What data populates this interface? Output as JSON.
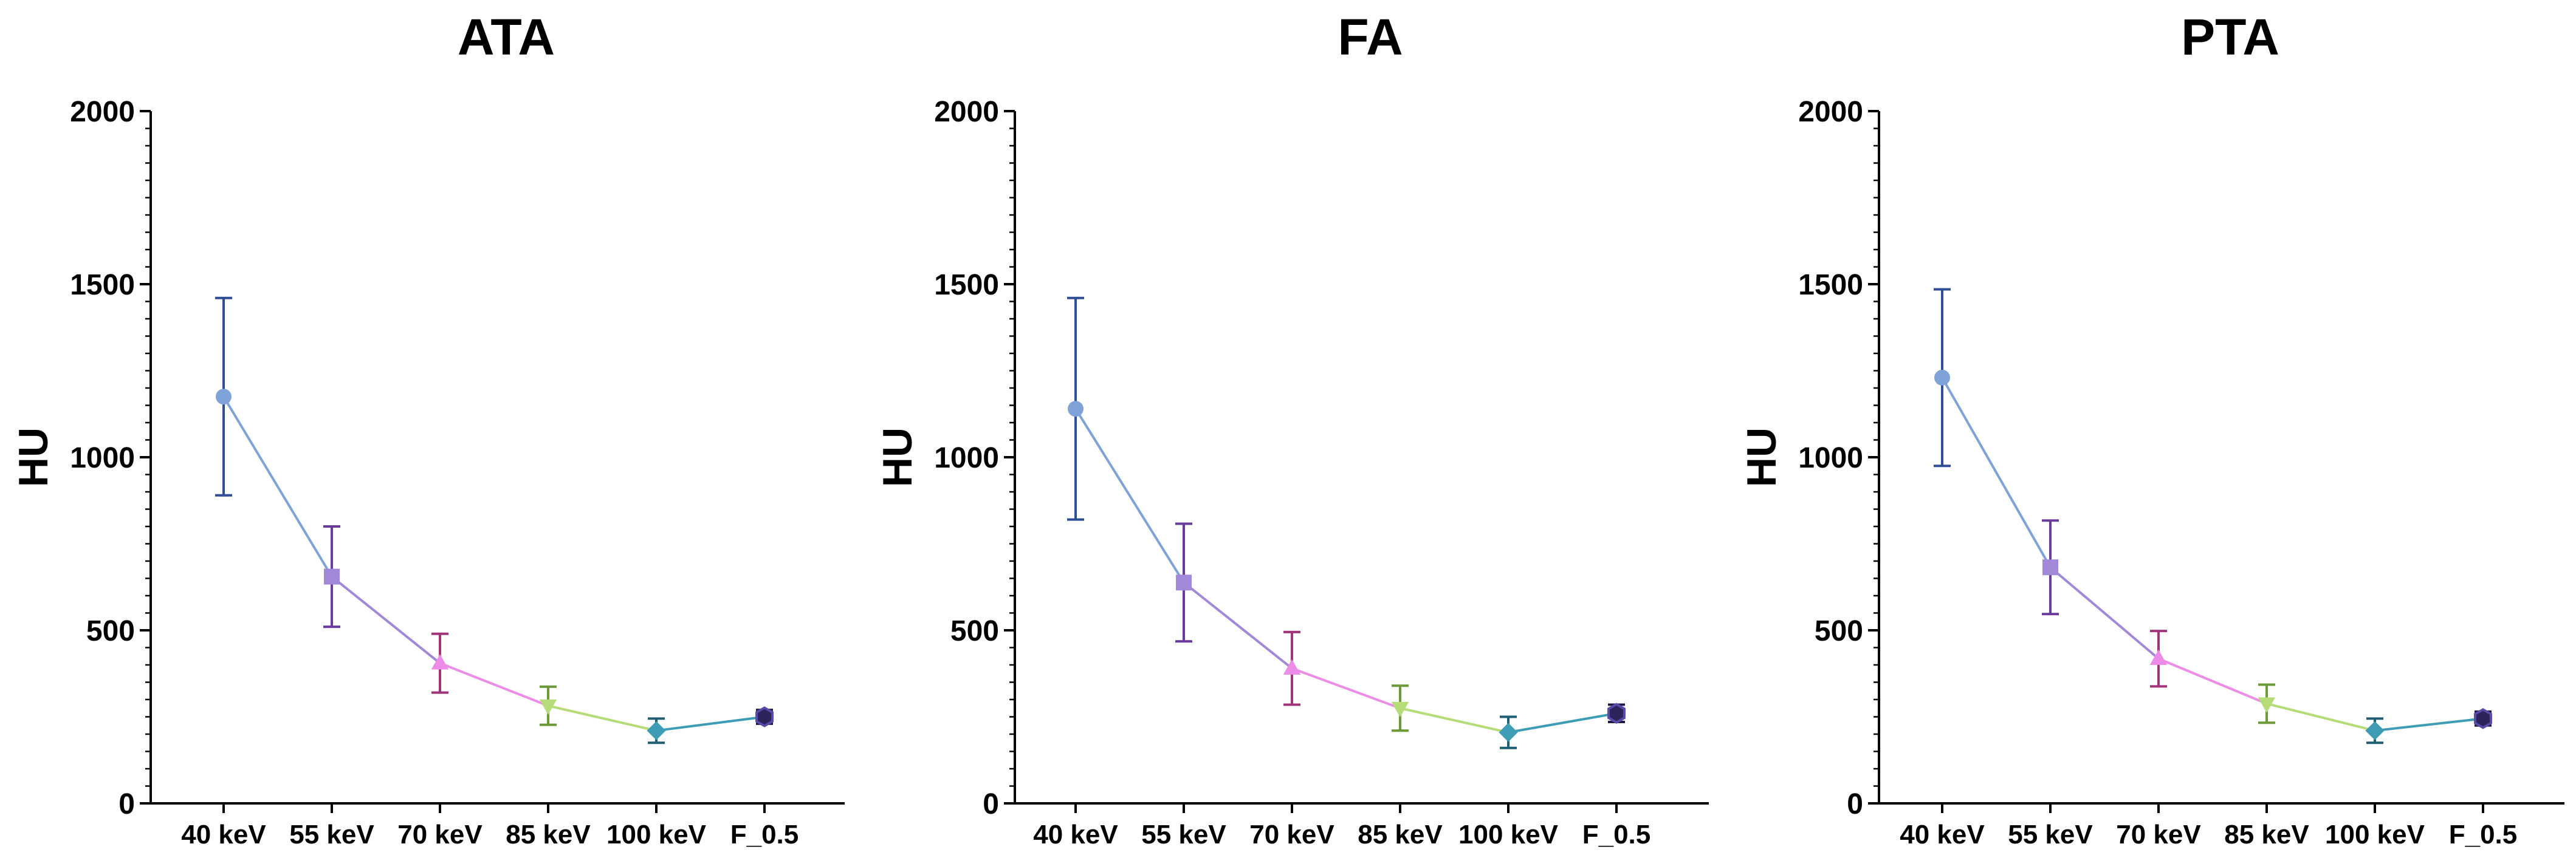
{
  "chart_data": [
    {
      "type": "line",
      "title": "ATA",
      "xlabel": "",
      "ylabel": "HU",
      "ylim": [
        0,
        2000
      ],
      "yticks": [
        0,
        500,
        1000,
        1500,
        2000
      ],
      "categories": [
        "40 keV",
        "55 keV",
        "70 keV",
        "85 keV",
        "100 keV",
        "F_0.5"
      ],
      "values": [
        1175,
        655,
        405,
        282,
        210,
        250
      ],
      "error": [
        285,
        145,
        85,
        55,
        35,
        20
      ]
    },
    {
      "type": "line",
      "title": "FA",
      "xlabel": "",
      "ylabel": "HU",
      "ylim": [
        0,
        2000
      ],
      "yticks": [
        0,
        500,
        1000,
        1500,
        2000
      ],
      "categories": [
        "40 keV",
        "55 keV",
        "70 keV",
        "85 keV",
        "100 keV",
        "F_0.5"
      ],
      "values": [
        1140,
        638,
        390,
        275,
        205,
        260
      ],
      "error": [
        320,
        170,
        105,
        65,
        45,
        25
      ]
    },
    {
      "type": "line",
      "title": "PTA",
      "xlabel": "",
      "ylabel": "HU",
      "ylim": [
        0,
        2000
      ],
      "yticks": [
        0,
        500,
        1000,
        1500,
        2000
      ],
      "categories": [
        "40 keV",
        "55 keV",
        "70 keV",
        "85 keV",
        "100 keV",
        "F_0.5"
      ],
      "values": [
        1230,
        682,
        418,
        288,
        210,
        245
      ],
      "error": [
        255,
        135,
        80,
        55,
        35,
        20
      ]
    }
  ],
  "styles": {
    "marker_colors": [
      "#7fa2d8",
      "#a188d8",
      "#ec8ce6",
      "#b6dc7a",
      "#3f9cb5",
      "#2b235a"
    ],
    "errorbar_colors": [
      "#2e4f96",
      "#6a3a9c",
      "#a1347a",
      "#6b9a38",
      "#1f5e74",
      "#1f1a45"
    ],
    "segment_colors": [
      "#7fa2d8",
      "#a188d8",
      "#ec8ce6",
      "#b6dc7a",
      "#3f9cb5"
    ],
    "marker_shapes": [
      "circle",
      "square",
      "triangle-up",
      "triangle-down",
      "diamond",
      "hexagon"
    ]
  }
}
